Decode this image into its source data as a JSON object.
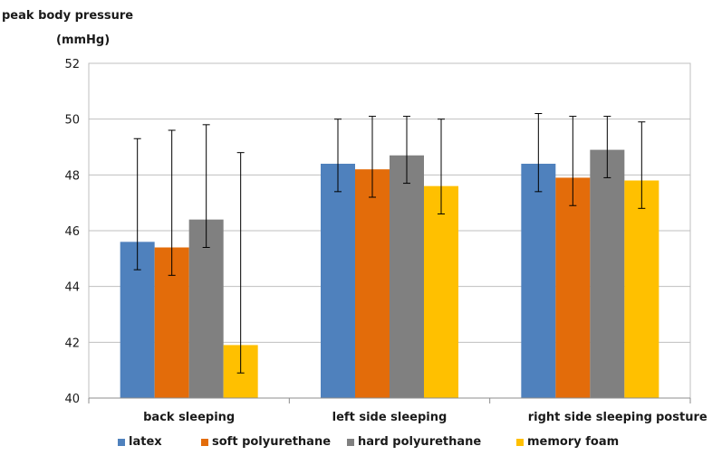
{
  "chart_data": {
    "type": "bar",
    "ylabel_line1": "peak body pressure",
    "ylabel_line2": "(mmHg)",
    "xlabel": "posture",
    "ylim": [
      40,
      52
    ],
    "yticks": [
      40,
      42,
      44,
      46,
      48,
      50,
      52
    ],
    "grid": true,
    "legend_position": "bottom",
    "categories": [
      "back sleeping",
      "left side sleeping",
      "right side sleeping"
    ],
    "series": [
      {
        "name": "latex",
        "color": "#4f81bd",
        "values": [
          45.6,
          48.4,
          48.4
        ],
        "err_low": [
          44.6,
          47.4,
          47.4
        ],
        "err_high": [
          49.3,
          50.0,
          50.2
        ]
      },
      {
        "name": "soft polyurethane",
        "color": "#e36c0a",
        "values": [
          45.4,
          48.2,
          47.9
        ],
        "err_low": [
          44.4,
          47.2,
          46.9
        ],
        "err_high": [
          49.6,
          50.1,
          50.1
        ]
      },
      {
        "name": "hard polyurethane",
        "color": "#808080",
        "values": [
          46.4,
          48.7,
          48.9
        ],
        "err_low": [
          45.4,
          47.7,
          47.9
        ],
        "err_high": [
          49.8,
          50.1,
          50.1
        ]
      },
      {
        "name": "memory foam",
        "color": "#ffc000",
        "values": [
          41.9,
          47.6,
          47.8
        ],
        "err_low": [
          40.9,
          46.6,
          46.8
        ],
        "err_high": [
          48.8,
          50.0,
          49.9
        ]
      }
    ]
  }
}
